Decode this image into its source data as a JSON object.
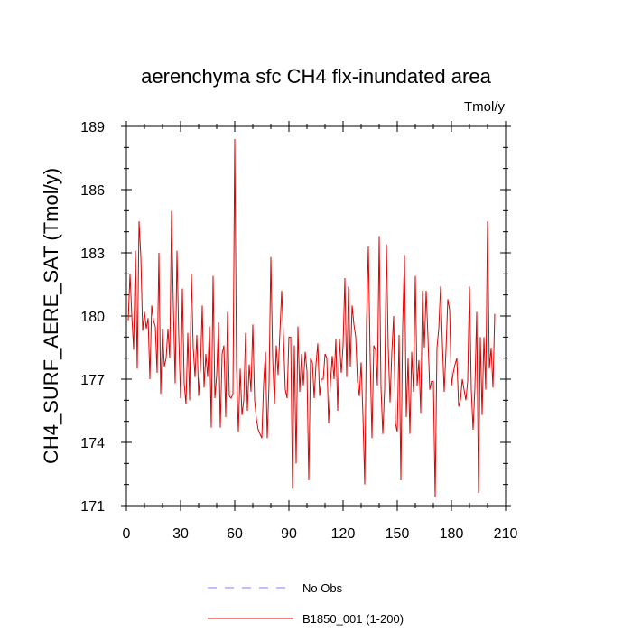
{
  "chart_data": {
    "type": "line",
    "title": "aerenchyma sfc CH4 flx-inundated area",
    "units_label": "Tmol/y",
    "ylabel": "CH4_SURF_AERE_SAT  (Tmol/y)",
    "xlabel": "",
    "xlim": [
      0,
      210
    ],
    "ylim": [
      171,
      189
    ],
    "x_ticks": [
      0,
      30,
      60,
      90,
      120,
      150,
      180,
      210
    ],
    "y_ticks": [
      171,
      174,
      177,
      180,
      183,
      186,
      189
    ],
    "x_minor_step": 10,
    "y_minor_step": 1,
    "x_tick_labels": [
      "0",
      "30",
      "60",
      "90",
      "120",
      "150",
      "180",
      "210"
    ],
    "y_tick_labels": [
      "171",
      "174",
      "177",
      "180",
      "183",
      "186",
      "189"
    ],
    "legend": {
      "placement": "bottom-center",
      "entries": [
        {
          "label": "No Obs",
          "color": "#7f7fff",
          "dashed": true
        },
        {
          "label": "B1850_001 (1-200)",
          "color": "#e00000",
          "dashed": false
        }
      ]
    },
    "series": [
      {
        "name": "B1850_001 (1-200)",
        "color": "#e00000",
        "x_start": 1,
        "values": [
          179.8,
          182.0,
          180.0,
          178.4,
          183.1,
          177.5,
          184.5,
          182.8,
          179.3,
          180.2,
          179.4,
          179.9,
          177.0,
          180.5,
          179.8,
          179.5,
          177.3,
          183.0,
          176.3,
          179.4,
          177.6,
          178.0,
          179.4,
          178.0,
          185.0,
          180.5,
          176.8,
          183.1,
          179.0,
          176.1,
          181.3,
          176.8,
          175.8,
          179.2,
          176.0,
          182.0,
          178.5,
          177.1,
          179.1,
          176.2,
          177.5,
          180.5,
          176.6,
          178.2,
          177.1,
          179.5,
          174.7,
          181.9,
          176.1,
          177.2,
          179.7,
          174.7,
          178.2,
          178.6,
          175.2,
          180.2,
          176.2,
          176.1,
          176.3,
          188.4,
          177.5,
          174.5,
          177.5,
          175.3,
          176.0,
          179.2,
          175.5,
          177.7,
          176.4,
          179.6,
          176.0,
          175.1,
          174.6,
          174.4,
          174.2,
          176.8,
          178.3,
          174.2,
          176.8,
          182.8,
          178.0,
          175.8,
          178.6,
          177.2,
          179.2,
          181.2,
          179.0,
          176.5,
          176.1,
          179.0,
          179.0,
          171.8,
          178.6,
          173.0,
          179.5,
          176.4,
          178.2,
          176.7,
          178.3,
          177.4,
          172.2,
          178.0,
          177.8,
          176.1,
          177.7,
          178.7,
          176.2,
          177.0,
          177.0,
          178.2,
          178.0,
          174.9,
          176.8,
          178.1,
          177.0,
          178.9,
          175.5,
          178.9,
          177.3,
          178.6,
          181.8,
          177.1,
          181.4,
          177.6,
          180.5,
          179.6,
          179.0,
          176.9,
          176.2,
          177.8,
          175.3,
          172.0,
          179.8,
          183.3,
          178.0,
          174.2,
          178.6,
          178.4,
          176.7,
          183.8,
          176.6,
          174.4,
          176.5,
          183.4,
          178.5,
          175.9,
          178.3,
          180.0,
          174.9,
          174.5,
          179.1,
          172.2,
          179.5,
          182.9,
          175.2,
          178.0,
          174.4,
          178.3,
          176.4,
          181.9,
          176.7,
          177.9,
          175.4,
          181.2,
          178.5,
          181.2,
          179.0,
          176.5,
          176.9,
          176.9,
          171.4,
          178.5,
          179.4,
          181.4,
          178.7,
          176.4,
          178.4,
          180.8,
          180.3,
          176.7,
          177.3,
          177.7,
          178.0,
          175.7,
          176.0,
          177.0,
          176.5,
          176.0,
          176.9,
          181.4,
          176.5,
          174.6,
          176.6,
          180.2,
          171.6,
          179.0,
          175.3,
          179.0,
          176.5,
          184.5,
          177.5,
          178.5,
          176.6,
          180.1
        ]
      }
    ]
  }
}
